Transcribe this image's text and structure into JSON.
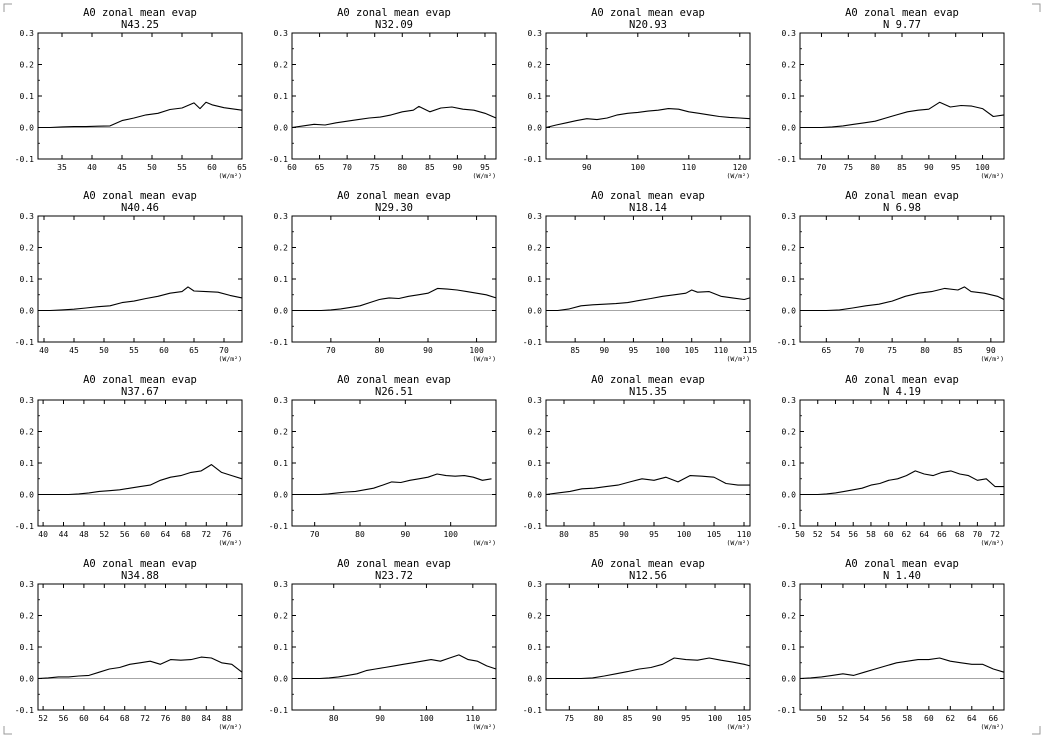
{
  "figure": {
    "corner_marks": true
  },
  "chart_data": [
    {
      "type": "line",
      "title": "A0 zonal mean evap",
      "subtitle": "N43.25",
      "xlabel": "(W/m²)",
      "ylim": [
        -0.1,
        0.3
      ],
      "yticks": [
        "0.3",
        "0.2",
        "0.1",
        "0.0",
        "-0.1"
      ],
      "xlim": [
        31,
        65
      ],
      "xticks": [
        35,
        40,
        45,
        50,
        55,
        60,
        65
      ],
      "x": [
        31,
        33,
        35,
        37,
        39,
        41,
        43,
        45,
        47,
        49,
        51,
        53,
        55,
        57,
        58,
        59,
        60,
        62,
        65
      ],
      "y": [
        0,
        0,
        0.002,
        0.003,
        0.003,
        0.004,
        0.005,
        0.022,
        0.03,
        0.04,
        0.045,
        0.057,
        0.062,
        0.078,
        0.06,
        0.08,
        0.072,
        0.063,
        0.055
      ]
    },
    {
      "type": "line",
      "title": "A0 zonal mean evap",
      "subtitle": "N32.09",
      "xlabel": "(W/m²)",
      "ylim": [
        -0.1,
        0.3
      ],
      "yticks": [
        "0.3",
        "0.2",
        "0.1",
        "0.0",
        "-0.1"
      ],
      "xlim": [
        60,
        97
      ],
      "xticks": [
        60,
        65,
        70,
        75,
        80,
        85,
        90,
        95
      ],
      "x": [
        60,
        62,
        64,
        66,
        68,
        70,
        72,
        74,
        76,
        78,
        80,
        82,
        83,
        85,
        87,
        89,
        91,
        93,
        95,
        97
      ],
      "y": [
        0,
        0.005,
        0.01,
        0.008,
        0.015,
        0.02,
        0.025,
        0.03,
        0.033,
        0.04,
        0.05,
        0.055,
        0.067,
        0.05,
        0.062,
        0.065,
        0.058,
        0.055,
        0.045,
        0.03
      ]
    },
    {
      "type": "line",
      "title": "A0 zonal mean evap",
      "subtitle": "N20.93",
      "xlabel": "(W/m²)",
      "ylim": [
        -0.1,
        0.3
      ],
      "yticks": [
        "0.3",
        "0.2",
        "0.1",
        "0.0",
        "-0.1"
      ],
      "xlim": [
        82,
        122
      ],
      "xticks": [
        90,
        100,
        110,
        120
      ],
      "x": [
        82,
        84,
        86,
        88,
        90,
        92,
        94,
        96,
        98,
        100,
        102,
        104,
        106,
        108,
        110,
        112,
        114,
        116,
        118,
        120,
        122
      ],
      "y": [
        0,
        0.008,
        0.015,
        0.022,
        0.028,
        0.025,
        0.03,
        0.04,
        0.045,
        0.048,
        0.052,
        0.055,
        0.06,
        0.058,
        0.05,
        0.045,
        0.04,
        0.035,
        0.032,
        0.03,
        0.028
      ]
    },
    {
      "type": "line",
      "title": "A0 zonal mean evap",
      "subtitle": "N 9.77",
      "xlabel": "(W/m²)",
      "ylim": [
        -0.1,
        0.3
      ],
      "yticks": [
        "0.3",
        "0.2",
        "0.1",
        "0.0",
        "-0.1"
      ],
      "xlim": [
        66,
        104
      ],
      "xticks": [
        70,
        75,
        80,
        85,
        90,
        95,
        100
      ],
      "x": [
        66,
        68,
        70,
        72,
        74,
        76,
        78,
        80,
        82,
        84,
        86,
        88,
        90,
        92,
        94,
        96,
        98,
        100,
        102,
        104
      ],
      "y": [
        0,
        0,
        0,
        0.002,
        0.005,
        0.01,
        0.015,
        0.02,
        0.03,
        0.04,
        0.05,
        0.055,
        0.058,
        0.08,
        0.065,
        0.07,
        0.068,
        0.06,
        0.035,
        0.04
      ]
    },
    {
      "type": "line",
      "title": "A0 zonal mean evap",
      "subtitle": "N40.46",
      "xlabel": "(W/m²)",
      "ylim": [
        -0.1,
        0.3
      ],
      "yticks": [
        "0.3",
        "0.2",
        "0.1",
        "0.0",
        "-0.1"
      ],
      "xlim": [
        39,
        73
      ],
      "xticks": [
        40,
        45,
        50,
        55,
        60,
        65,
        70
      ],
      "x": [
        39,
        41,
        43,
        45,
        47,
        49,
        51,
        53,
        55,
        57,
        59,
        61,
        63,
        64,
        65,
        67,
        69,
        71,
        73
      ],
      "y": [
        0,
        0,
        0.002,
        0.004,
        0.008,
        0.012,
        0.015,
        0.025,
        0.03,
        0.038,
        0.045,
        0.055,
        0.06,
        0.075,
        0.062,
        0.06,
        0.058,
        0.048,
        0.04
      ]
    },
    {
      "type": "line",
      "title": "A0 zonal mean evap",
      "subtitle": "N29.30",
      "xlabel": "(W/m²)",
      "ylim": [
        -0.1,
        0.3
      ],
      "yticks": [
        "0.3",
        "0.2",
        "0.1",
        "0.0",
        "-0.1"
      ],
      "xlim": [
        62,
        104
      ],
      "xticks": [
        70,
        80,
        90,
        100
      ],
      "x": [
        62,
        64,
        66,
        68,
        70,
        72,
        74,
        76,
        78,
        80,
        82,
        84,
        86,
        88,
        90,
        92,
        94,
        96,
        98,
        100,
        102,
        104
      ],
      "y": [
        0,
        0,
        0,
        0,
        0.002,
        0.005,
        0.01,
        0.015,
        0.025,
        0.035,
        0.04,
        0.038,
        0.045,
        0.05,
        0.055,
        0.07,
        0.068,
        0.065,
        0.06,
        0.055,
        0.05,
        0.04
      ]
    },
    {
      "type": "line",
      "title": "A0 zonal mean evap",
      "subtitle": "N18.14",
      "xlabel": "(W/m²)",
      "ylim": [
        -0.1,
        0.3
      ],
      "yticks": [
        "0.3",
        "0.2",
        "0.1",
        "0.0",
        "-0.1"
      ],
      "xlim": [
        80,
        115
      ],
      "xticks": [
        85,
        90,
        95,
        100,
        105,
        110,
        115
      ],
      "x": [
        80,
        82,
        84,
        86,
        88,
        90,
        92,
        94,
        96,
        98,
        100,
        102,
        104,
        105,
        106,
        108,
        110,
        112,
        114,
        115
      ],
      "y": [
        0,
        0,
        0.005,
        0.015,
        0.018,
        0.02,
        0.022,
        0.025,
        0.032,
        0.038,
        0.045,
        0.05,
        0.055,
        0.065,
        0.058,
        0.06,
        0.045,
        0.04,
        0.035,
        0.04
      ]
    },
    {
      "type": "line",
      "title": "A0 zonal mean evap",
      "subtitle": "N 6.98",
      "xlabel": "(W/m²)",
      "ylim": [
        -0.1,
        0.3
      ],
      "yticks": [
        "0.3",
        "0.2",
        "0.1",
        "0.0",
        "-0.1"
      ],
      "xlim": [
        61,
        92
      ],
      "xticks": [
        65,
        70,
        75,
        80,
        85,
        90
      ],
      "x": [
        61,
        63,
        65,
        67,
        69,
        71,
        73,
        75,
        77,
        79,
        81,
        83,
        85,
        86,
        87,
        89,
        91,
        92
      ],
      "y": [
        0,
        0,
        0,
        0.002,
        0.008,
        0.015,
        0.02,
        0.03,
        0.045,
        0.055,
        0.06,
        0.07,
        0.065,
        0.075,
        0.06,
        0.055,
        0.045,
        0.035
      ]
    },
    {
      "type": "line",
      "title": "A0 zonal mean evap",
      "subtitle": "N37.67",
      "xlabel": "(W/m²)",
      "ylim": [
        -0.1,
        0.3
      ],
      "yticks": [
        "0.3",
        "0.2",
        "0.1",
        "0.0",
        "-0.1"
      ],
      "xlim": [
        39,
        79
      ],
      "xticks": [
        40,
        44,
        48,
        52,
        56,
        60,
        64,
        68,
        72,
        76
      ],
      "x": [
        39,
        41,
        43,
        45,
        47,
        49,
        51,
        53,
        55,
        57,
        59,
        61,
        63,
        65,
        67,
        69,
        71,
        73,
        75,
        77,
        79
      ],
      "y": [
        0,
        0,
        0,
        0,
        0.002,
        0.005,
        0.01,
        0.012,
        0.015,
        0.02,
        0.025,
        0.03,
        0.045,
        0.055,
        0.06,
        0.07,
        0.075,
        0.095,
        0.07,
        0.06,
        0.05
      ]
    },
    {
      "type": "line",
      "title": "A0 zonal mean evap",
      "subtitle": "N26.51",
      "xlabel": "(W/m²)",
      "ylim": [
        -0.1,
        0.3
      ],
      "yticks": [
        "0.3",
        "0.2",
        "0.1",
        "0.0",
        "-0.1"
      ],
      "xlim": [
        65,
        110
      ],
      "xticks": [
        70,
        80,
        90,
        100
      ],
      "x": [
        65,
        67,
        69,
        71,
        73,
        75,
        77,
        79,
        81,
        83,
        85,
        87,
        89,
        91,
        93,
        95,
        97,
        99,
        101,
        103,
        105,
        107,
        109
      ],
      "y": [
        0,
        0,
        0,
        0,
        0.002,
        0.005,
        0.008,
        0.01,
        0.015,
        0.02,
        0.03,
        0.04,
        0.038,
        0.045,
        0.05,
        0.055,
        0.065,
        0.06,
        0.058,
        0.06,
        0.055,
        0.045,
        0.05
      ]
    },
    {
      "type": "line",
      "title": "A0 zonal mean evap",
      "subtitle": "N15.35",
      "xlabel": "(W/m²)",
      "ylim": [
        -0.1,
        0.3
      ],
      "yticks": [
        "0.3",
        "0.2",
        "0.1",
        "0.0",
        "-0.1"
      ],
      "xlim": [
        77,
        111
      ],
      "xticks": [
        80,
        85,
        90,
        95,
        100,
        105,
        110
      ],
      "x": [
        77,
        79,
        81,
        83,
        85,
        87,
        89,
        91,
        93,
        95,
        97,
        99,
        101,
        103,
        105,
        107,
        109,
        111
      ],
      "y": [
        0,
        0.005,
        0.01,
        0.018,
        0.02,
        0.025,
        0.03,
        0.04,
        0.05,
        0.045,
        0.055,
        0.04,
        0.06,
        0.058,
        0.055,
        0.035,
        0.03,
        0.03
      ]
    },
    {
      "type": "line",
      "title": "A0 zonal mean evap",
      "subtitle": "N 4.19",
      "xlabel": "(W/m²)",
      "ylim": [
        -0.1,
        0.3
      ],
      "yticks": [
        "0.3",
        "0.2",
        "0.1",
        "0.0",
        "-0.1"
      ],
      "xlim": [
        50,
        73
      ],
      "xticks": [
        50,
        52,
        54,
        56,
        58,
        60,
        62,
        64,
        66,
        68,
        70,
        72
      ],
      "x": [
        50,
        51,
        52,
        53,
        54,
        55,
        56,
        57,
        58,
        59,
        60,
        61,
        62,
        63,
        64,
        65,
        66,
        67,
        68,
        69,
        70,
        71,
        72,
        73
      ],
      "y": [
        0,
        0,
        0,
        0.002,
        0.005,
        0.01,
        0.015,
        0.02,
        0.03,
        0.035,
        0.045,
        0.05,
        0.06,
        0.075,
        0.065,
        0.06,
        0.07,
        0.075,
        0.065,
        0.06,
        0.045,
        0.05,
        0.025,
        0.025
      ]
    },
    {
      "type": "line",
      "title": "A0 zonal mean evap",
      "subtitle": "N34.88",
      "xlabel": "(W/m²)",
      "ylim": [
        -0.1,
        0.3
      ],
      "yticks": [
        "0.3",
        "0.2",
        "0.1",
        "0.0",
        "-0.1"
      ],
      "xlim": [
        51,
        91
      ],
      "xticks": [
        52,
        56,
        60,
        64,
        68,
        72,
        76,
        80,
        84,
        88
      ],
      "x": [
        51,
        53,
        55,
        57,
        59,
        61,
        63,
        65,
        67,
        69,
        71,
        73,
        75,
        77,
        79,
        81,
        83,
        85,
        87,
        89,
        91
      ],
      "y": [
        0,
        0.002,
        0.005,
        0.005,
        0.008,
        0.01,
        0.02,
        0.03,
        0.035,
        0.045,
        0.05,
        0.055,
        0.045,
        0.06,
        0.058,
        0.06,
        0.068,
        0.065,
        0.05,
        0.045,
        0.02
      ]
    },
    {
      "type": "line",
      "title": "A0 zonal mean evap",
      "subtitle": "N23.72",
      "xlabel": "(W/m²)",
      "ylim": [
        -0.1,
        0.3
      ],
      "yticks": [
        "0.3",
        "0.2",
        "0.1",
        "0.0",
        "-0.1"
      ],
      "xlim": [
        71,
        115
      ],
      "xticks": [
        80,
        90,
        100,
        110
      ],
      "x": [
        71,
        73,
        75,
        77,
        79,
        81,
        83,
        85,
        87,
        89,
        91,
        93,
        95,
        97,
        99,
        101,
        103,
        105,
        107,
        109,
        111,
        113,
        115
      ],
      "y": [
        0,
        0,
        0,
        0,
        0.002,
        0.005,
        0.01,
        0.015,
        0.025,
        0.03,
        0.035,
        0.04,
        0.045,
        0.05,
        0.055,
        0.06,
        0.055,
        0.065,
        0.075,
        0.06,
        0.055,
        0.04,
        0.03
      ]
    },
    {
      "type": "line",
      "title": "A0 zonal mean evap",
      "subtitle": "N12.56",
      "xlabel": "(W/m²)",
      "ylim": [
        -0.1,
        0.3
      ],
      "yticks": [
        "0.3",
        "0.2",
        "0.1",
        "0.0",
        "-0.1"
      ],
      "xlim": [
        71,
        106
      ],
      "xticks": [
        75,
        80,
        85,
        90,
        95,
        100,
        105
      ],
      "x": [
        71,
        73,
        75,
        77,
        79,
        81,
        83,
        85,
        87,
        89,
        91,
        93,
        95,
        97,
        99,
        101,
        103,
        105,
        106
      ],
      "y": [
        0,
        0,
        0,
        0,
        0.002,
        0.008,
        0.015,
        0.022,
        0.03,
        0.035,
        0.045,
        0.065,
        0.06,
        0.058,
        0.065,
        0.058,
        0.052,
        0.045,
        0.04
      ]
    },
    {
      "type": "line",
      "title": "A0 zonal mean evap",
      "subtitle": "N 1.40",
      "xlabel": "(W/m²)",
      "ylim": [
        -0.1,
        0.3
      ],
      "yticks": [
        "0.3",
        "0.2",
        "0.1",
        "0.0",
        "-0.1"
      ],
      "xlim": [
        48,
        67
      ],
      "xticks": [
        50,
        52,
        54,
        56,
        58,
        60,
        62,
        64,
        66
      ],
      "x": [
        48,
        49,
        50,
        51,
        52,
        53,
        54,
        55,
        56,
        57,
        58,
        59,
        60,
        61,
        62,
        63,
        64,
        65,
        66,
        67
      ],
      "y": [
        0,
        0.002,
        0.005,
        0.01,
        0.015,
        0.01,
        0.02,
        0.03,
        0.04,
        0.05,
        0.055,
        0.06,
        0.06,
        0.065,
        0.055,
        0.05,
        0.045,
        0.045,
        0.03,
        0.02
      ]
    }
  ]
}
